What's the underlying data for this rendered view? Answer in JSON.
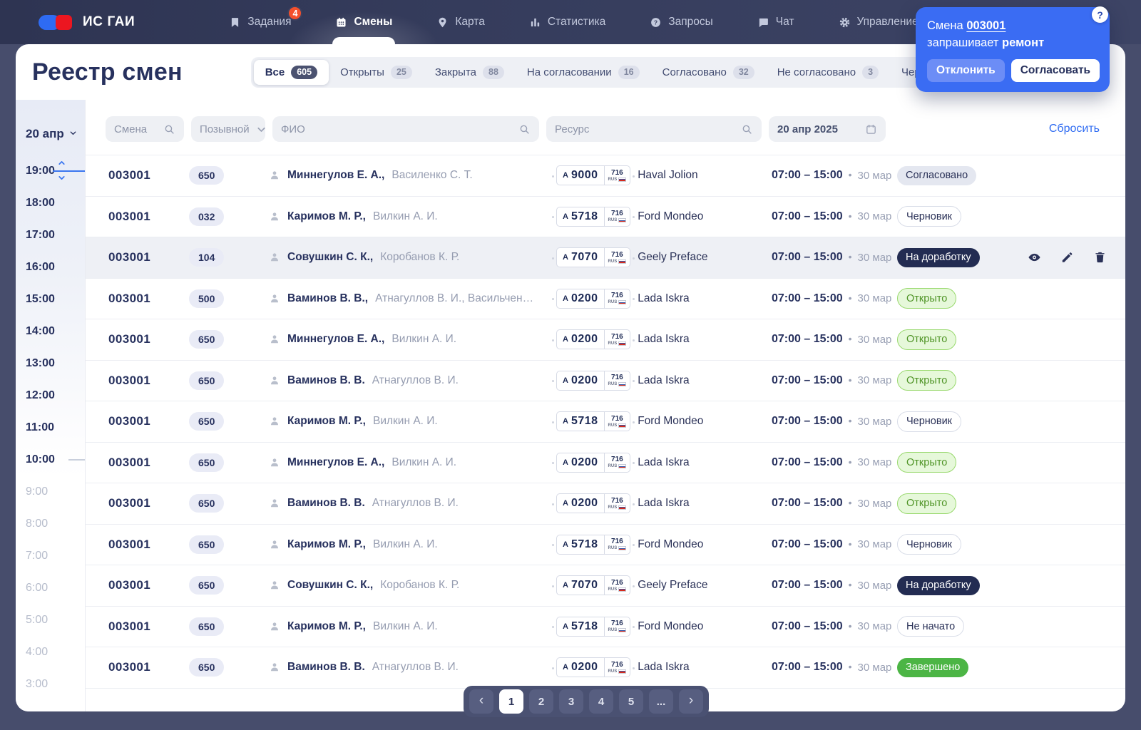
{
  "brand": {
    "name": "ИС ГАИ"
  },
  "nav": {
    "items": [
      {
        "label": "Задания",
        "icon": "bookmark",
        "badge": "4",
        "active": false
      },
      {
        "label": "Смены",
        "icon": "calendar",
        "badge": null,
        "active": true
      },
      {
        "label": "Карта",
        "icon": "pin",
        "badge": null,
        "active": false
      },
      {
        "label": "Статистика",
        "icon": "chart",
        "badge": null,
        "active": false
      },
      {
        "label": "Запросы",
        "icon": "question",
        "badge": null,
        "active": false
      },
      {
        "label": "Чат",
        "icon": "chat",
        "badge": null,
        "active": false
      },
      {
        "label": "Управление",
        "icon": "gear",
        "badge": null,
        "active": false
      }
    ]
  },
  "notification": {
    "prefix": "Смена",
    "shift": "003001",
    "action": "запрашивает",
    "request": "ремонт",
    "decline": "Отклонить",
    "approve": "Согласовать"
  },
  "page": {
    "title": "Реестр смен"
  },
  "tabs": [
    {
      "label": "Все",
      "count": "605",
      "active": true
    },
    {
      "label": "Открыты",
      "count": "25",
      "active": false
    },
    {
      "label": "Закрыта",
      "count": "88",
      "active": false
    },
    {
      "label": "На согласовании",
      "count": "16",
      "active": false
    },
    {
      "label": "Согласовано",
      "count": "32",
      "active": false
    },
    {
      "label": "Не согласовано",
      "count": "3",
      "active": false
    },
    {
      "label": "Черновик",
      "count": null,
      "active": false
    }
  ],
  "filters": {
    "shift": "Смена",
    "callsign": "Позывной",
    "fio": "ФИО",
    "resource": "Ресурс",
    "date": "20 апр 2025",
    "reset": "Сбросить"
  },
  "timeline": {
    "date_label": "20 апр",
    "times": [
      {
        "label": "19:00",
        "dark": true,
        "indicator": "blue"
      },
      {
        "label": "18:00",
        "dark": true,
        "indicator": null
      },
      {
        "label": "17:00",
        "dark": true,
        "indicator": null
      },
      {
        "label": "16:00",
        "dark": true,
        "indicator": null
      },
      {
        "label": "15:00",
        "dark": true,
        "indicator": null
      },
      {
        "label": "14:00",
        "dark": true,
        "indicator": null
      },
      {
        "label": "13:00",
        "dark": true,
        "indicator": null
      },
      {
        "label": "12:00",
        "dark": true,
        "indicator": null
      },
      {
        "label": "11:00",
        "dark": true,
        "indicator": null
      },
      {
        "label": "10:00",
        "dark": true,
        "indicator": "gray"
      },
      {
        "label": "9:00",
        "dark": false,
        "indicator": null
      },
      {
        "label": "8:00",
        "dark": false,
        "indicator": null
      },
      {
        "label": "7:00",
        "dark": false,
        "indicator": null
      },
      {
        "label": "6:00",
        "dark": false,
        "indicator": null
      },
      {
        "label": "5:00",
        "dark": false,
        "indicator": null
      },
      {
        "label": "4:00",
        "dark": false,
        "indicator": null
      },
      {
        "label": "3:00",
        "dark": false,
        "indicator": null
      }
    ]
  },
  "table": {
    "rows": [
      {
        "shift": "003001",
        "callsign": "650",
        "name1": "Миннегулов Е. А.,",
        "name2": "Василенко С. Т.",
        "plate": "А 9000",
        "region": "716",
        "country": "RUS",
        "model": "Haval Jolion",
        "time": "07:00 – 15:00",
        "date": "30 мар",
        "status": "Согласовано",
        "status_type": "agreed",
        "hover": false,
        "actions": false
      },
      {
        "shift": "003001",
        "callsign": "032",
        "name1": "Каримов М. Р.,",
        "name2": "Вилкин А. И.",
        "plate": "А 5718",
        "region": "716",
        "country": "RUS",
        "model": "Ford Mondeo",
        "time": "07:00 – 15:00",
        "date": "30 мар",
        "status": "Черновик",
        "status_type": "draft",
        "hover": false,
        "actions": false
      },
      {
        "shift": "003001",
        "callsign": "104",
        "name1": "Совушкин С. К.,",
        "name2": "Коробанов К. Р.",
        "plate": "А 7070",
        "region": "716",
        "country": "RUS",
        "model": "Geely Preface",
        "time": "07:00 – 15:00",
        "date": "30 мар",
        "status": "На доработку",
        "status_type": "rework",
        "hover": true,
        "actions": true
      },
      {
        "shift": "003001",
        "callsign": "500",
        "name1": "Ваминов В. В.,",
        "name2": "Атнагуллов В. И., Васильченковски...",
        "plate": "А 0200",
        "region": "716",
        "country": "RUS",
        "model": "Lada Iskra",
        "time": "07:00 – 15:00",
        "date": "30 мар",
        "status": "Открыто",
        "status_type": "open",
        "hover": false,
        "actions": false
      },
      {
        "shift": "003001",
        "callsign": "650",
        "name1": "Миннегулов Е. А.,",
        "name2": "Вилкин А. И.",
        "plate": "А 0200",
        "region": "716",
        "country": "RUS",
        "model": "Lada Iskra",
        "time": "07:00 – 15:00",
        "date": "30 мар",
        "status": "Открыто",
        "status_type": "open",
        "hover": false,
        "actions": false
      },
      {
        "shift": "003001",
        "callsign": "650",
        "name1": "Ваминов В. В.",
        "name2": "Атнагуллов В. И.",
        "plate": "А 0200",
        "region": "716",
        "country": "RUS",
        "model": "Lada Iskra",
        "time": "07:00 – 15:00",
        "date": "30 мар",
        "status": "Открыто",
        "status_type": "open",
        "hover": false,
        "actions": false
      },
      {
        "shift": "003001",
        "callsign": "650",
        "name1": "Каримов М. Р.,",
        "name2": "Вилкин А. И.",
        "plate": "А 5718",
        "region": "716",
        "country": "RUS",
        "model": "Ford Mondeo",
        "time": "07:00 – 15:00",
        "date": "30 мар",
        "status": "Черновик",
        "status_type": "draft",
        "hover": false,
        "actions": false
      },
      {
        "shift": "003001",
        "callsign": "650",
        "name1": "Миннегулов Е. А.,",
        "name2": "Вилкин А. И.",
        "plate": "А 0200",
        "region": "716",
        "country": "RUS",
        "model": "Lada Iskra",
        "time": "07:00 – 15:00",
        "date": "30 мар",
        "status": "Открыто",
        "status_type": "open",
        "hover": false,
        "actions": false
      },
      {
        "shift": "003001",
        "callsign": "650",
        "name1": "Ваминов В. В.",
        "name2": "Атнагуллов В. И.",
        "plate": "А 0200",
        "region": "716",
        "country": "RUS",
        "model": "Lada Iskra",
        "time": "07:00 – 15:00",
        "date": "30 мар",
        "status": "Открыто",
        "status_type": "open",
        "hover": false,
        "actions": false
      },
      {
        "shift": "003001",
        "callsign": "650",
        "name1": "Каримов М. Р.,",
        "name2": "Вилкин А. И.",
        "plate": "А 5718",
        "region": "716",
        "country": "RUS",
        "model": "Ford Mondeo",
        "time": "07:00 – 15:00",
        "date": "30 мар",
        "status": "Черновик",
        "status_type": "draft",
        "hover": false,
        "actions": false
      },
      {
        "shift": "003001",
        "callsign": "650",
        "name1": "Совушкин С. К.,",
        "name2": "Коробанов К. Р.",
        "plate": "А 7070",
        "region": "716",
        "country": "RUS",
        "model": "Geely Preface",
        "time": "07:00 – 15:00",
        "date": "30 мар",
        "status": "На доработку",
        "status_type": "rework",
        "hover": false,
        "actions": false
      },
      {
        "shift": "003001",
        "callsign": "650",
        "name1": "Каримов М. Р.,",
        "name2": "Вилкин А. И.",
        "plate": "А 5718",
        "region": "716",
        "country": "RUS",
        "model": "Ford Mondeo",
        "time": "07:00 – 15:00",
        "date": "30 мар",
        "status": "Не начато",
        "status_type": "notstarted",
        "hover": false,
        "actions": false
      },
      {
        "shift": "003001",
        "callsign": "650",
        "name1": "Ваминов В. В.",
        "name2": "Атнагуллов В. И.",
        "plate": "А 0200",
        "region": "716",
        "country": "RUS",
        "model": "Lada Iskra",
        "time": "07:00 – 15:00",
        "date": "30 мар",
        "status": "Завершено",
        "status_type": "done",
        "hover": false,
        "actions": false
      }
    ]
  },
  "pagination": {
    "items": [
      {
        "label": "‹",
        "kind": "prev",
        "active": false
      },
      {
        "label": "1",
        "kind": "page",
        "active": true
      },
      {
        "label": "2",
        "kind": "page",
        "active": false
      },
      {
        "label": "3",
        "kind": "page",
        "active": false
      },
      {
        "label": "4",
        "kind": "page",
        "active": false
      },
      {
        "label": "5",
        "kind": "page",
        "active": false
      },
      {
        "label": "...",
        "kind": "ellipsis",
        "active": false
      },
      {
        "label": "›",
        "kind": "next",
        "active": false
      }
    ]
  },
  "colors": {
    "accent_blue": "#2e6bf3",
    "popup_blue": "#3a6cf3",
    "navy_text": "#27315e",
    "status_open_green": "#4f9426",
    "status_done_green": "#4cb545",
    "status_rework_navy": "#232c52",
    "badge_red": "#f4502c"
  }
}
